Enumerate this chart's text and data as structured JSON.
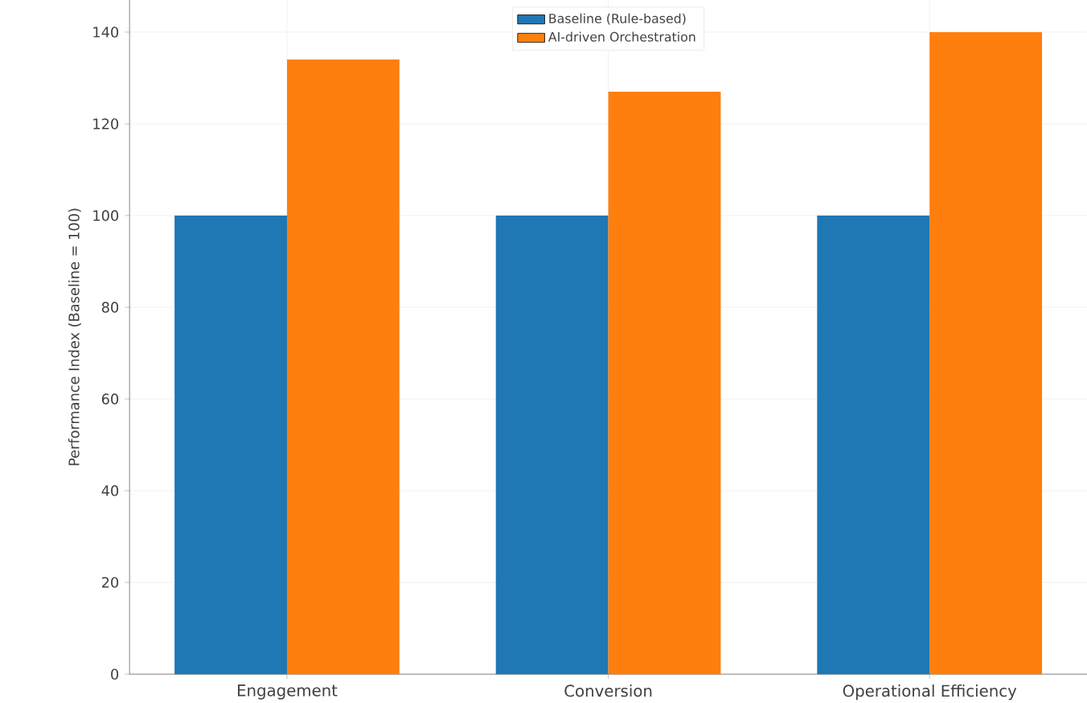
{
  "chart_data": {
    "type": "bar",
    "categories": [
      "Engagement",
      "Conversion",
      "Operational Efficiency"
    ],
    "ylabel": "Performance Index (Baseline = 100)",
    "series": [
      {
        "name": "Baseline (Rule-based)",
        "color": "#1f77b4",
        "values": [
          100,
          100,
          100
        ]
      },
      {
        "name": "AI-driven Orchestration",
        "color": "#ff7f0e",
        "values": [
          134,
          127,
          140
        ]
      }
    ],
    "ylim": [
      0,
      147
    ],
    "yticks": [
      0,
      20,
      40,
      60,
      80,
      100,
      120,
      140
    ],
    "grid": true,
    "legend": "top"
  }
}
